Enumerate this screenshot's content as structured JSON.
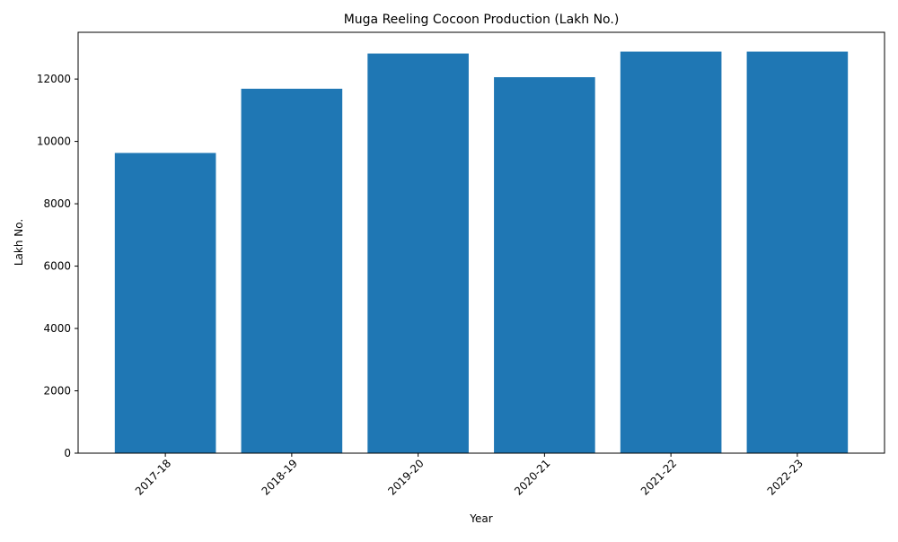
{
  "chart_data": {
    "type": "bar",
    "title": "Muga Reeling Cocoon Production (Lakh No.)",
    "xlabel": "Year",
    "ylabel": "Lakh No.",
    "categories": [
      "2017-18",
      "2018-19",
      "2019-20",
      "2020-21",
      "2021-22",
      "2022-23"
    ],
    "values": [
      9630,
      11690,
      12820,
      12060,
      12880,
      12880
    ],
    "ylim": [
      0,
      13500
    ],
    "yticks": [
      0,
      2000,
      4000,
      6000,
      8000,
      10000,
      12000
    ],
    "bar_color": "#1f77b4",
    "grid": false,
    "legend": "none"
  }
}
